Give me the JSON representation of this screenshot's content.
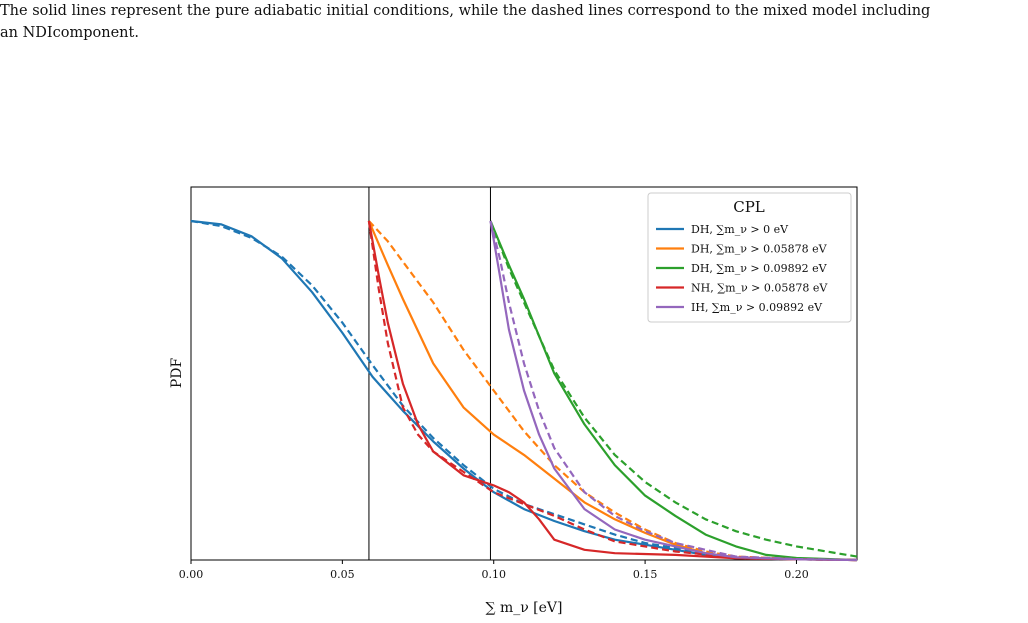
{
  "caption": {
    "line1": "The solid lines represent the pure adiabatic initial conditions, while the dashed lines correspond to the mixed model including",
    "line2": "an NDIcomponent."
  },
  "chart_data": {
    "type": "line",
    "title": "",
    "xlabel": "∑ m_ν [eV]",
    "ylabel": "PDF",
    "xlim": [
      0.0,
      0.22
    ],
    "ylim": [
      0.0,
      1.0
    ],
    "xticks": [
      0.0,
      0.05,
      0.1,
      0.15,
      0.2
    ],
    "xtick_labels": [
      "0.00",
      "0.05",
      "0.10",
      "0.15",
      "0.20"
    ],
    "vlines": [
      0.05878,
      0.09892
    ],
    "grid": false,
    "legend": {
      "title": "CPL",
      "placement": "top-right",
      "entries": [
        {
          "text": "DH, ∑m_ν > 0 eV",
          "color": "#1f77b4"
        },
        {
          "text": "DH, ∑m_ν > 0.05878 eV",
          "color": "#ff7f0e"
        },
        {
          "text": "DH, ∑m_ν > 0.09892 eV",
          "color": "#2ca02c"
        },
        {
          "text": "NH, ∑m_ν > 0.05878 eV",
          "color": "#d62728"
        },
        {
          "text": "IH, ∑m_ν > 0.09892 eV",
          "color": "#9467bd"
        }
      ]
    },
    "series": [
      {
        "name": "DH, ∑m_ν > 0 eV",
        "color": "#1f77b4",
        "style": "solid",
        "x": [
          0.0,
          0.01,
          0.02,
          0.03,
          0.04,
          0.05,
          0.06,
          0.07,
          0.08,
          0.09,
          0.1,
          0.11,
          0.12,
          0.13,
          0.14,
          0.15,
          0.16,
          0.17,
          0.18,
          0.2,
          0.22
        ],
        "y": [
          1.0,
          0.99,
          0.955,
          0.89,
          0.79,
          0.67,
          0.54,
          0.44,
          0.35,
          0.27,
          0.2,
          0.15,
          0.115,
          0.085,
          0.06,
          0.045,
          0.03,
          0.015,
          0.005,
          0.002,
          0.0
        ]
      },
      {
        "name": "DH, ∑m_ν > 0 eV (mixed)",
        "color": "#1f77b4",
        "style": "dashed",
        "x": [
          0.0,
          0.01,
          0.02,
          0.03,
          0.04,
          0.05,
          0.06,
          0.07,
          0.08,
          0.09,
          0.1,
          0.11,
          0.12,
          0.13,
          0.14,
          0.15,
          0.16,
          0.17,
          0.18,
          0.2,
          0.22
        ],
        "y": [
          1.0,
          0.985,
          0.95,
          0.895,
          0.81,
          0.7,
          0.575,
          0.455,
          0.36,
          0.28,
          0.21,
          0.165,
          0.135,
          0.105,
          0.075,
          0.05,
          0.035,
          0.02,
          0.005,
          0.002,
          0.0
        ]
      },
      {
        "name": "DH, ∑m_ν > 0.05878 eV",
        "color": "#ff7f0e",
        "style": "solid",
        "x": [
          0.05878,
          0.065,
          0.07,
          0.08,
          0.09,
          0.1,
          0.11,
          0.12,
          0.13,
          0.14,
          0.15,
          0.16,
          0.17,
          0.18,
          0.2,
          0.22
        ],
        "y": [
          1.0,
          0.87,
          0.77,
          0.58,
          0.45,
          0.37,
          0.31,
          0.24,
          0.17,
          0.12,
          0.08,
          0.045,
          0.02,
          0.008,
          0.002,
          0.0
        ]
      },
      {
        "name": "DH, ∑m_ν > 0.05878 eV (mixed)",
        "color": "#ff7f0e",
        "style": "dashed",
        "x": [
          0.05878,
          0.065,
          0.07,
          0.08,
          0.09,
          0.1,
          0.11,
          0.12,
          0.13,
          0.14,
          0.15,
          0.16,
          0.17,
          0.18,
          0.2,
          0.22
        ],
        "y": [
          1.0,
          0.94,
          0.88,
          0.76,
          0.62,
          0.5,
          0.38,
          0.28,
          0.2,
          0.14,
          0.09,
          0.05,
          0.025,
          0.01,
          0.003,
          0.0
        ]
      },
      {
        "name": "DH, ∑m_ν > 0.09892 eV",
        "color": "#2ca02c",
        "style": "solid",
        "x": [
          0.09892,
          0.105,
          0.11,
          0.12,
          0.13,
          0.14,
          0.15,
          0.16,
          0.17,
          0.18,
          0.19,
          0.2,
          0.21,
          0.22
        ],
        "y": [
          1.0,
          0.87,
          0.77,
          0.55,
          0.4,
          0.28,
          0.19,
          0.13,
          0.075,
          0.04,
          0.015,
          0.006,
          0.003,
          0.0
        ]
      },
      {
        "name": "DH, ∑m_ν > 0.09892 eV (mixed)",
        "color": "#2ca02c",
        "style": "dashed",
        "x": [
          0.09892,
          0.105,
          0.11,
          0.12,
          0.13,
          0.14,
          0.15,
          0.16,
          0.17,
          0.18,
          0.19,
          0.2,
          0.21,
          0.22
        ],
        "y": [
          1.0,
          0.86,
          0.76,
          0.56,
          0.42,
          0.31,
          0.23,
          0.17,
          0.12,
          0.085,
          0.06,
          0.04,
          0.025,
          0.01
        ]
      },
      {
        "name": "NH, ∑m_ν > 0.05878 eV",
        "color": "#d62728",
        "style": "solid",
        "x": [
          0.05878,
          0.062,
          0.065,
          0.07,
          0.075,
          0.08,
          0.09,
          0.1,
          0.105,
          0.11,
          0.115,
          0.12,
          0.13,
          0.14,
          0.16,
          0.18,
          0.2,
          0.22
        ],
        "y": [
          1.0,
          0.84,
          0.7,
          0.52,
          0.4,
          0.32,
          0.25,
          0.22,
          0.2,
          0.17,
          0.12,
          0.06,
          0.03,
          0.02,
          0.015,
          0.005,
          0.002,
          0.0
        ]
      },
      {
        "name": "NH, ∑m_ν > 0.05878 eV (mixed)",
        "color": "#d62728",
        "style": "dashed",
        "x": [
          0.05878,
          0.062,
          0.065,
          0.07,
          0.075,
          0.08,
          0.09,
          0.1,
          0.11,
          0.12,
          0.13,
          0.14,
          0.16,
          0.18,
          0.2,
          0.22
        ],
        "y": [
          1.0,
          0.8,
          0.64,
          0.45,
          0.37,
          0.32,
          0.26,
          0.2,
          0.165,
          0.13,
          0.09,
          0.055,
          0.025,
          0.008,
          0.002,
          0.0
        ]
      },
      {
        "name": "IH, ∑m_ν > 0.09892 eV",
        "color": "#9467bd",
        "style": "solid",
        "x": [
          0.09892,
          0.102,
          0.105,
          0.11,
          0.115,
          0.12,
          0.13,
          0.14,
          0.15,
          0.16,
          0.17,
          0.18,
          0.2,
          0.22
        ],
        "y": [
          1.0,
          0.84,
          0.68,
          0.5,
          0.37,
          0.27,
          0.15,
          0.09,
          0.06,
          0.04,
          0.02,
          0.008,
          0.002,
          0.0
        ]
      },
      {
        "name": "IH, ∑m_ν > 0.09892 eV (mixed)",
        "color": "#9467bd",
        "style": "dashed",
        "x": [
          0.09892,
          0.102,
          0.105,
          0.11,
          0.115,
          0.12,
          0.13,
          0.14,
          0.15,
          0.16,
          0.17,
          0.18,
          0.2,
          0.22
        ],
        "y": [
          1.0,
          0.89,
          0.76,
          0.58,
          0.44,
          0.33,
          0.2,
          0.13,
          0.085,
          0.05,
          0.03,
          0.01,
          0.003,
          0.0
        ]
      }
    ]
  }
}
